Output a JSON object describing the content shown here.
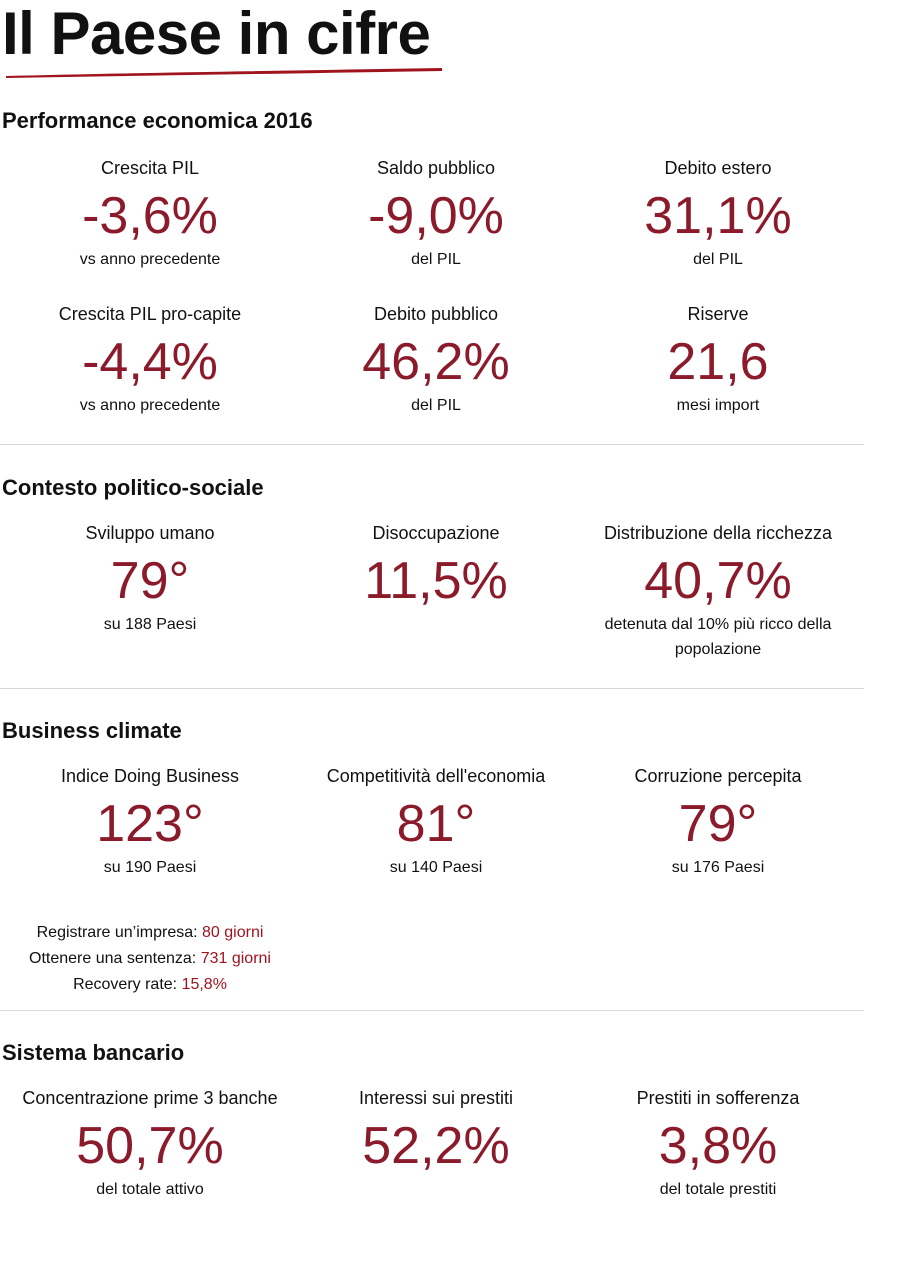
{
  "header": {
    "title": "Il Paese in cifre"
  },
  "colors": {
    "value": "#8b1a2b",
    "accent": "#a0141e",
    "underline": "#a0141e"
  },
  "sections": {
    "performance": {
      "title": "Performance economica 2016",
      "kpis": [
        {
          "label": "Crescita PIL",
          "value": "-3,6%",
          "note": "vs anno precedente"
        },
        {
          "label": "Saldo pubblico",
          "value": "-9,0%",
          "note": "del PIL"
        },
        {
          "label": "Debito estero",
          "value": "31,1%",
          "note": "del PIL"
        },
        {
          "label": "Crescita PIL pro-capite",
          "value": "-4,4%",
          "note": "vs anno precedente"
        },
        {
          "label": "Debito pubblico",
          "value": "46,2%",
          "note": "del PIL"
        },
        {
          "label": "Riserve",
          "value": "21,6",
          "note": "mesi import"
        }
      ]
    },
    "politico": {
      "title": "Contesto politico-sociale",
      "kpis": [
        {
          "label": "Sviluppo umano",
          "value": "79°",
          "note": "su 188 Paesi"
        },
        {
          "label": "Disoccupazione",
          "value": "11,5%",
          "note": ""
        },
        {
          "label": "Distribuzione della ricchezza",
          "value": "40,7%",
          "note": "detenuta dal 10% più ricco della popolazione"
        }
      ]
    },
    "business": {
      "title": "Business climate",
      "kpis": [
        {
          "label": "Indice Doing Business",
          "value": "123°",
          "note": "su 190 Paesi"
        },
        {
          "label": "Competitività dell'economia",
          "value": "81°",
          "note": "su 140 Paesi"
        },
        {
          "label": "Corruzione percepita",
          "value": "79°",
          "note": "su 176 Paesi"
        }
      ],
      "extras": [
        {
          "label": "Registrare un’impresa:",
          "value": "80 giorni"
        },
        {
          "label": "Ottenere una sentenza:",
          "value": "731 giorni"
        },
        {
          "label": "Recovery rate:",
          "value": "15,8%"
        }
      ]
    },
    "bancario": {
      "title": "Sistema bancario",
      "kpis": [
        {
          "label": "Concentrazione prime 3 banche",
          "value": "50,7%",
          "note": "del totale attivo"
        },
        {
          "label": "Interessi sui prestiti",
          "value": "52,2%",
          "note": ""
        },
        {
          "label": "Prestiti in sofferenza",
          "value": "3,8%",
          "note": "del totale prestiti"
        }
      ]
    }
  }
}
